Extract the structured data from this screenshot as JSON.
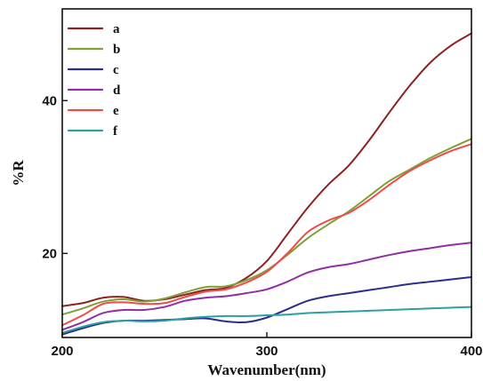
{
  "chart_data": {
    "type": "line",
    "title": "",
    "xlabel": "Wavenumber(nm)",
    "ylabel": "%R",
    "xlim": [
      200,
      400
    ],
    "ylim": [
      9,
      52
    ],
    "x_ticks": [
      200,
      300,
      400
    ],
    "y_ticks": [
      20,
      40
    ],
    "grid": false,
    "legend_position": "top-left",
    "series": [
      {
        "name": "a",
        "color": "#8b2323",
        "points": [
          [
            200,
            13.1
          ],
          [
            210,
            13.5
          ],
          [
            220,
            14.2
          ],
          [
            230,
            14.3
          ],
          [
            240,
            13.8
          ],
          [
            250,
            14.0
          ],
          [
            260,
            14.6
          ],
          [
            270,
            15.2
          ],
          [
            280,
            15.5
          ],
          [
            290,
            16.8
          ],
          [
            300,
            19.0
          ],
          [
            310,
            22.5
          ],
          [
            320,
            26.0
          ],
          [
            330,
            29.0
          ],
          [
            340,
            31.5
          ],
          [
            350,
            34.8
          ],
          [
            360,
            38.5
          ],
          [
            370,
            42.0
          ],
          [
            380,
            45.0
          ],
          [
            390,
            47.2
          ],
          [
            400,
            48.8
          ]
        ]
      },
      {
        "name": "b",
        "color": "#7ea035",
        "points": [
          [
            200,
            12.0
          ],
          [
            210,
            12.8
          ],
          [
            220,
            13.7
          ],
          [
            230,
            14.0
          ],
          [
            240,
            13.7
          ],
          [
            250,
            14.1
          ],
          [
            260,
            14.9
          ],
          [
            270,
            15.6
          ],
          [
            280,
            15.7
          ],
          [
            290,
            16.5
          ],
          [
            300,
            17.8
          ],
          [
            310,
            19.8
          ],
          [
            320,
            22.0
          ],
          [
            330,
            23.8
          ],
          [
            340,
            25.5
          ],
          [
            350,
            27.5
          ],
          [
            360,
            29.5
          ],
          [
            370,
            31.0
          ],
          [
            380,
            32.5
          ],
          [
            390,
            33.8
          ],
          [
            400,
            35.0
          ]
        ]
      },
      {
        "name": "c",
        "color": "#2b2d8e",
        "points": [
          [
            200,
            9.4
          ],
          [
            210,
            10.2
          ],
          [
            220,
            10.9
          ],
          [
            230,
            11.2
          ],
          [
            240,
            11.2
          ],
          [
            250,
            11.3
          ],
          [
            260,
            11.4
          ],
          [
            270,
            11.5
          ],
          [
            280,
            11.1
          ],
          [
            290,
            11.0
          ],
          [
            300,
            11.6
          ],
          [
            310,
            12.7
          ],
          [
            320,
            13.8
          ],
          [
            330,
            14.4
          ],
          [
            340,
            14.8
          ],
          [
            350,
            15.2
          ],
          [
            360,
            15.6
          ],
          [
            370,
            16.0
          ],
          [
            380,
            16.3
          ],
          [
            390,
            16.6
          ],
          [
            400,
            16.9
          ]
        ]
      },
      {
        "name": "d",
        "color": "#8f2fa3",
        "points": [
          [
            200,
            10.0
          ],
          [
            210,
            11.0
          ],
          [
            220,
            12.2
          ],
          [
            230,
            12.6
          ],
          [
            240,
            12.6
          ],
          [
            250,
            13.0
          ],
          [
            260,
            13.8
          ],
          [
            270,
            14.2
          ],
          [
            280,
            14.4
          ],
          [
            290,
            14.8
          ],
          [
            300,
            15.3
          ],
          [
            310,
            16.3
          ],
          [
            320,
            17.5
          ],
          [
            330,
            18.2
          ],
          [
            340,
            18.6
          ],
          [
            350,
            19.2
          ],
          [
            360,
            19.8
          ],
          [
            370,
            20.3
          ],
          [
            380,
            20.7
          ],
          [
            390,
            21.1
          ],
          [
            400,
            21.4
          ]
        ]
      },
      {
        "name": "e",
        "color": "#f04a4a",
        "points": [
          [
            200,
            10.6
          ],
          [
            210,
            11.9
          ],
          [
            220,
            13.4
          ],
          [
            230,
            13.6
          ],
          [
            240,
            13.4
          ],
          [
            250,
            13.5
          ],
          [
            260,
            14.3
          ],
          [
            270,
            15.0
          ],
          [
            280,
            15.3
          ],
          [
            290,
            16.2
          ],
          [
            300,
            17.6
          ],
          [
            310,
            20.0
          ],
          [
            320,
            22.8
          ],
          [
            330,
            24.3
          ],
          [
            340,
            25.3
          ],
          [
            350,
            27.0
          ],
          [
            360,
            29.0
          ],
          [
            370,
            30.8
          ],
          [
            380,
            32.2
          ],
          [
            390,
            33.4
          ],
          [
            400,
            34.3
          ]
        ]
      },
      {
        "name": "f",
        "color": "#2aa0a2",
        "points": [
          [
            200,
            9.6
          ],
          [
            210,
            10.4
          ],
          [
            220,
            11.0
          ],
          [
            230,
            11.2
          ],
          [
            240,
            11.1
          ],
          [
            250,
            11.2
          ],
          [
            260,
            11.5
          ],
          [
            270,
            11.7
          ],
          [
            280,
            11.8
          ],
          [
            290,
            11.8
          ],
          [
            300,
            11.9
          ],
          [
            310,
            12.0
          ],
          [
            320,
            12.2
          ],
          [
            330,
            12.3
          ],
          [
            340,
            12.4
          ],
          [
            350,
            12.5
          ],
          [
            360,
            12.6
          ],
          [
            370,
            12.7
          ],
          [
            380,
            12.8
          ],
          [
            390,
            12.9
          ],
          [
            400,
            13.0
          ]
        ]
      }
    ]
  }
}
